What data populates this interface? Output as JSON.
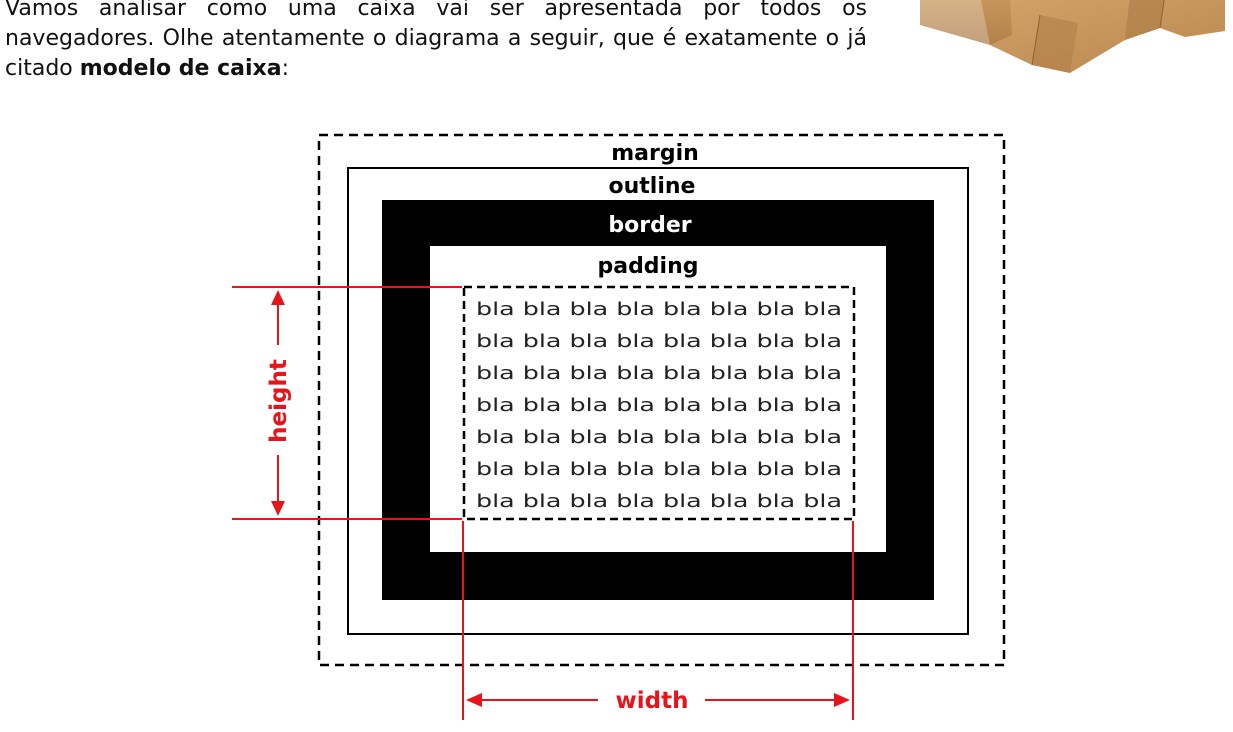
{
  "intro": {
    "text_before": "Vamos analisar como uma caixa vai ser apresentada por todos os navegadores. Olhe atentamente o diagrama a seguir, que é exatamente o já citado ",
    "bold": "modelo de caixa",
    "text_after": ":"
  },
  "diagram": {
    "margin_label": "margin",
    "outline_label": "outline",
    "border_label": "border",
    "padding_label": "padding",
    "content_line": "bla bla bla bla bla bla bla bla",
    "height_label": "height",
    "width_label": "width"
  },
  "colors": {
    "dimension": "#e8141b",
    "border_fill": "#000000",
    "box_cardboard": "#c9975c"
  },
  "icons": {
    "box_photo": "cardboard-boxes-image"
  }
}
